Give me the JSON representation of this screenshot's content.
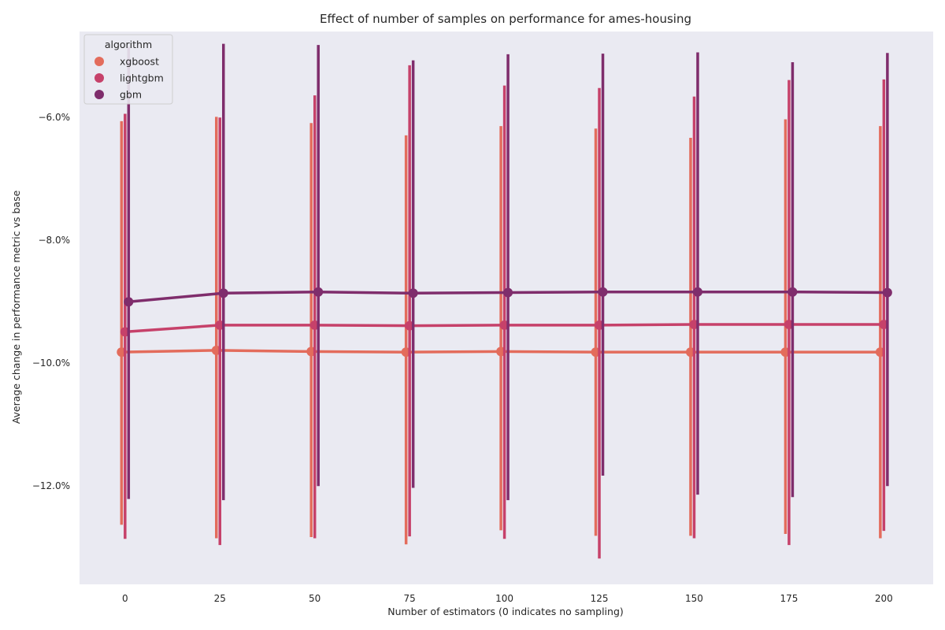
{
  "chart_data": {
    "type": "line",
    "title": "Effect of number of samples on performance for ames-housing",
    "xlabel": "Number of estimators (0 indicates no sampling)",
    "ylabel": "Average change in performance metric vs base",
    "x": [
      0,
      25,
      50,
      75,
      100,
      125,
      150,
      175,
      200
    ],
    "xlim": [
      -12,
      213
    ],
    "ylim": [
      -13.6,
      -4.6
    ],
    "xticks": [
      0,
      25,
      50,
      75,
      100,
      125,
      150,
      175,
      200
    ],
    "xtick_labels": [
      "0",
      "25",
      "50",
      "75",
      "100",
      "125",
      "150",
      "175",
      "200"
    ],
    "yticks": [
      -12,
      -10,
      -8,
      -6
    ],
    "ytick_labels": [
      "−12.0%",
      "−10.0%",
      "−8.0%",
      "−6.0%"
    ],
    "y_unit": "%",
    "legend": {
      "title": "algorithm",
      "position": "top-left"
    },
    "background": "#eaeaf2",
    "grid": false,
    "series": [
      {
        "name": "xgboost",
        "color": "#e36c5c",
        "values": [
          -9.82,
          -9.79,
          -9.81,
          -9.82,
          -9.81,
          -9.82,
          -9.82,
          -9.82,
          -9.82
        ],
        "err_low": [
          -12.63,
          -12.85,
          -12.83,
          -12.95,
          -12.72,
          -12.81,
          -12.81,
          -12.78,
          -12.85
        ],
        "err_high": [
          -6.06,
          -5.99,
          -6.09,
          -6.29,
          -6.14,
          -6.18,
          -6.33,
          -6.03,
          -6.14
        ]
      },
      {
        "name": "lightgbm",
        "color": "#c6416a",
        "values": [
          -9.49,
          -9.38,
          -9.38,
          -9.39,
          -9.38,
          -9.38,
          -9.37,
          -9.37,
          -9.37
        ],
        "err_low": [
          -12.86,
          -12.96,
          -12.85,
          -12.82,
          -12.86,
          -13.18,
          -12.85,
          -12.96,
          -12.73
        ],
        "err_high": [
          -5.94,
          -6.0,
          -5.64,
          -5.15,
          -5.48,
          -5.52,
          -5.66,
          -5.39,
          -5.38
        ]
      },
      {
        "name": "gbm",
        "color": "#7f2d6c",
        "values": [
          -9.0,
          -8.86,
          -8.84,
          -8.86,
          -8.85,
          -8.84,
          -8.84,
          -8.84,
          -8.85
        ],
        "err_low": [
          -12.21,
          -12.23,
          -12.0,
          -12.03,
          -12.23,
          -11.83,
          -12.14,
          -12.18,
          -12.0
        ],
        "err_high": [
          -4.85,
          -4.8,
          -4.82,
          -5.07,
          -4.97,
          -4.96,
          -4.94,
          -5.1,
          -4.95
        ]
      }
    ]
  }
}
